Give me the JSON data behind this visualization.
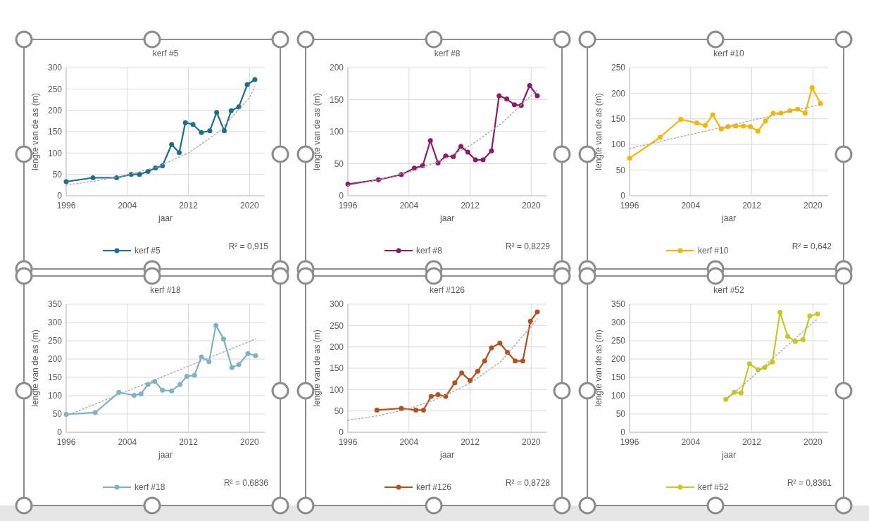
{
  "chart_data": [
    {
      "type": "line",
      "title": "kerf #5",
      "xlabel": "jaar",
      "ylabel": "lengte van de as (m)",
      "xlim": [
        1996,
        2022
      ],
      "xticks": [
        1996,
        2004,
        2012,
        2020
      ],
      "ylim": [
        0,
        300
      ],
      "yticks": [
        0,
        50,
        100,
        150,
        200,
        250,
        300
      ],
      "grid": true,
      "legend": "bottom",
      "marker": "circle",
      "annotations": [
        "R² = 0,915"
      ],
      "series": [
        {
          "name": "kerf #5",
          "color": "#1c6e8c",
          "x": [
            1996,
            1999.5,
            2002.6,
            2004.5,
            2005.6,
            2006.7,
            2007.7,
            2008.6,
            2009.8,
            2010.8,
            2011.6,
            2012.6,
            2013.7,
            2014.8,
            2015.7,
            2016.7,
            2017.6,
            2018.6,
            2019.7,
            2020.7
          ],
          "values": [
            33,
            42,
            42,
            50,
            50,
            57,
            65,
            70,
            120,
            101,
            171,
            167,
            148,
            152,
            195,
            152,
            199,
            208,
            260,
            272
          ]
        },
        {
          "type": "line",
          "color": "#a6a6a6",
          "line_style": "dotted",
          "marker": "none",
          "x": [
            1996,
            2000,
            2004,
            2008,
            2012,
            2016,
            2020,
            2020.7
          ],
          "values": [
            25,
            35,
            48,
            68,
            100,
            150,
            230,
            255
          ]
        }
      ]
    },
    {
      "type": "line",
      "title": "kerf #8",
      "xlabel": "jaar",
      "ylabel": "lengte van de as (m)",
      "xlim": [
        1996,
        2022
      ],
      "xticks": [
        1996,
        2004,
        2012,
        2020
      ],
      "ylim": [
        0,
        200
      ],
      "yticks": [
        0,
        50,
        100,
        150,
        200
      ],
      "grid": true,
      "legend": "bottom",
      "marker": "circle",
      "annotations": [
        "R² = 0,8229"
      ],
      "series": [
        {
          "name": "kerf #8",
          "color": "#8c1a6a",
          "x": [
            1996,
            2000,
            2003,
            2004.7,
            2005.8,
            2006.8,
            2007.8,
            2008.8,
            2009.8,
            2010.8,
            2011.7,
            2012.7,
            2013.7,
            2014.8,
            2015.8,
            2016.8,
            2017.8,
            2018.7,
            2019.8,
            2020.8
          ],
          "values": [
            18,
            25,
            33,
            43,
            47,
            86,
            51,
            62,
            61,
            77,
            68,
            56,
            56,
            70,
            156,
            151,
            142,
            141,
            172,
            156
          ]
        },
        {
          "type": "line",
          "color": "#a6a6a6",
          "line_style": "dotted",
          "marker": "none",
          "x": [
            1996,
            2000,
            2004,
            2008,
            2012,
            2016,
            2020.8
          ],
          "values": [
            16,
            25,
            37,
            54,
            78,
            112,
            165
          ]
        }
      ]
    },
    {
      "type": "line",
      "title": "kerf #10",
      "xlabel": "jaar",
      "ylabel": "lengte van de as (m)",
      "xlim": [
        1996,
        2022
      ],
      "xticks": [
        1996,
        2004,
        2012,
        2020
      ],
      "ylim": [
        0,
        250
      ],
      "yticks": [
        0,
        50,
        100,
        150,
        200,
        250
      ],
      "grid": true,
      "legend": "bottom",
      "marker": "circle",
      "annotations": [
        "R² = 0,642"
      ],
      "series": [
        {
          "name": "kerf #10",
          "color": "#f2b800",
          "x": [
            1996,
            2000,
            2002.7,
            2004.8,
            2005.9,
            2006.9,
            2008,
            2008.9,
            2009.9,
            2010.9,
            2011.8,
            2012.8,
            2013.8,
            2014.8,
            2015.8,
            2017,
            2018,
            2019,
            2019.9,
            2021
          ],
          "values": [
            73,
            114,
            149,
            142,
            137,
            158,
            130,
            135,
            136,
            136,
            135,
            126,
            146,
            161,
            161,
            166,
            169,
            161,
            211,
            180
          ]
        },
        {
          "type": "line",
          "color": "#a6a6a6",
          "line_style": "dotted",
          "marker": "none",
          "x": [
            1996,
            2021
          ],
          "values": [
            92,
            178
          ]
        }
      ]
    },
    {
      "type": "line",
      "title": "kerf #18",
      "xlabel": "jaar",
      "ylabel": "lengte van de as (m)",
      "xlim": [
        1996,
        2022
      ],
      "xticks": [
        1996,
        2004,
        2012,
        2020
      ],
      "ylim": [
        0,
        350
      ],
      "yticks": [
        0,
        50,
        100,
        150,
        200,
        250,
        300,
        350
      ],
      "grid": true,
      "legend": "bottom",
      "marker": "circle",
      "annotations": [
        "R² = 0,6836"
      ],
      "series": [
        {
          "name": "kerf #18",
          "color": "#7fb2c2",
          "x": [
            1996,
            1999.8,
            2002.9,
            2004.9,
            2005.8,
            2006.7,
            2007.6,
            2008.6,
            2009.8,
            2010.9,
            2011.8,
            2012.8,
            2013.7,
            2014.7,
            2015.6,
            2016.6,
            2017.7,
            2018.6,
            2019.8,
            2020.8
          ],
          "values": [
            49,
            54,
            109,
            101,
            105,
            131,
            139,
            115,
            113,
            131,
            153,
            156,
            206,
            193,
            292,
            255,
            177,
            185,
            215,
            209
          ]
        },
        {
          "type": "line",
          "color": "#a6a6a6",
          "line_style": "dotted",
          "marker": "none",
          "x": [
            1996,
            2020.8
          ],
          "values": [
            45,
            255
          ]
        }
      ]
    },
    {
      "type": "line",
      "title": "kerf #126",
      "xlabel": "jaar",
      "ylabel": "lengte van de as (m)",
      "xlim": [
        1996,
        2022
      ],
      "xticks": [
        1996,
        2004,
        2012,
        2020
      ],
      "ylim": [
        0,
        300
      ],
      "yticks": [
        0,
        50,
        100,
        150,
        200,
        250,
        300
      ],
      "grid": true,
      "legend": "bottom",
      "marker": "circle",
      "annotations": [
        "R² = 0,8728"
      ],
      "series": [
        {
          "name": "kerf #126",
          "color": "#b4501c",
          "x": [
            1999.8,
            2003,
            2004.9,
            2005.9,
            2006.9,
            2007.8,
            2008.8,
            2010,
            2010.9,
            2012,
            2013,
            2013.9,
            2014.8,
            2015.9,
            2016.9,
            2017.9,
            2018.9,
            2019.9,
            2020.8
          ],
          "values": [
            52,
            56,
            52,
            52,
            84,
            88,
            84,
            116,
            139,
            121,
            143,
            167,
            198,
            209,
            187,
            167,
            167,
            260,
            282
          ]
        },
        {
          "type": "line",
          "color": "#a6a6a6",
          "line_style": "dotted",
          "marker": "none",
          "x": [
            1996,
            2000,
            2004,
            2008,
            2012,
            2016,
            2020.8
          ],
          "values": [
            28,
            39,
            55,
            80,
            115,
            165,
            265
          ]
        }
      ]
    },
    {
      "type": "line",
      "title": "kerf #52",
      "xlabel": "jaar",
      "ylabel": "lengte van de as (m)",
      "xlim": [
        1996,
        2022
      ],
      "xticks": [
        1996,
        2004,
        2012,
        2020
      ],
      "ylim": [
        0,
        350
      ],
      "yticks": [
        0,
        50,
        100,
        150,
        200,
        250,
        300,
        350
      ],
      "grid": true,
      "legend": "bottom",
      "marker": "circle",
      "annotations": [
        "R² = 0,8361"
      ],
      "series": [
        {
          "name": "kerf #52",
          "color": "#c9c81c",
          "x": [
            2008.6,
            2009.7,
            2010.6,
            2011.7,
            2012.8,
            2013.7,
            2014.7,
            2015.7,
            2016.7,
            2017.7,
            2018.7,
            2019.6,
            2020.6
          ],
          "values": [
            90,
            109,
            107,
            187,
            171,
            177,
            192,
            328,
            262,
            248,
            253,
            318,
            323
          ]
        },
        {
          "type": "line",
          "color": "#a6a6a6",
          "line_style": "dotted",
          "marker": "none",
          "x": [
            2008.6,
            2012,
            2016,
            2020.6
          ],
          "values": [
            88,
            150,
            225,
            310
          ]
        }
      ]
    }
  ]
}
